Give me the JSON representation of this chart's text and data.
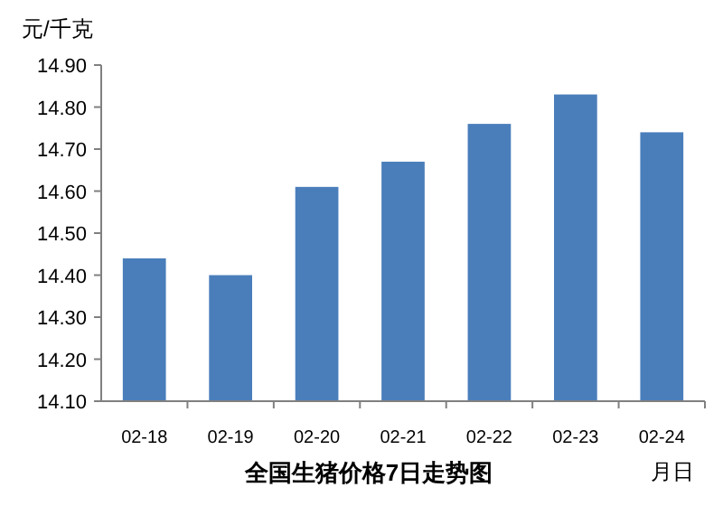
{
  "chart_data": {
    "type": "bar",
    "title": "全国生猪价格7日走势图",
    "ylabel": "元/千克",
    "xlabel": "月日",
    "categories": [
      "02-18",
      "02-19",
      "02-20",
      "02-21",
      "02-22",
      "02-23",
      "02-24"
    ],
    "values": [
      14.44,
      14.4,
      14.61,
      14.67,
      14.76,
      14.83,
      14.74
    ],
    "color": "#4a7ebb",
    "ylim": [
      14.1,
      14.9
    ],
    "yticks": [
      {
        "value": 14.1,
        "label": "14.10"
      },
      {
        "value": 14.2,
        "label": "14.20"
      },
      {
        "value": 14.3,
        "label": "14.30"
      },
      {
        "value": 14.4,
        "label": "14.40"
      },
      {
        "value": 14.5,
        "label": "14.50"
      },
      {
        "value": 14.6,
        "label": "14.60"
      },
      {
        "value": 14.7,
        "label": "14.70"
      },
      {
        "value": 14.8,
        "label": "14.80"
      },
      {
        "value": 14.9,
        "label": "14.90"
      }
    ],
    "grid": false
  }
}
